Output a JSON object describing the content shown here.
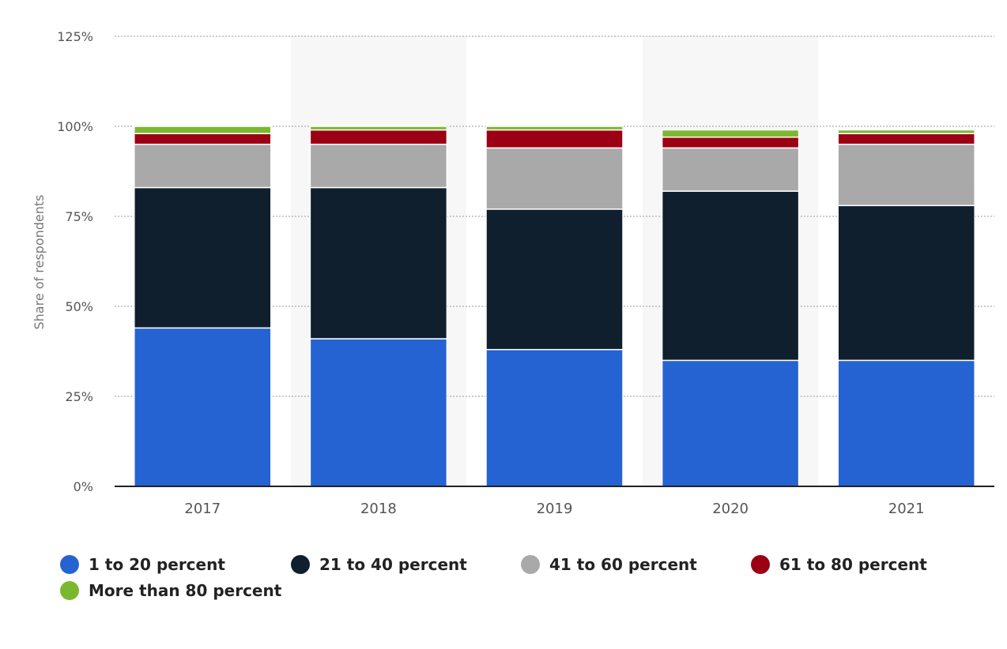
{
  "chart_data": {
    "type": "bar",
    "stacked": true,
    "categories": [
      "2017",
      "2018",
      "2019",
      "2020",
      "2021"
    ],
    "ylabel": "Share of respondents",
    "ylim": [
      0,
      125
    ],
    "yticks": [
      "0%",
      "25%",
      "50%",
      "75%",
      "100%",
      "125%"
    ],
    "grid": true,
    "legend_placement": "bottom",
    "series": [
      {
        "name": "1 to 20 percent",
        "color": "#2563d3",
        "values": [
          44,
          41,
          38,
          35,
          35
        ]
      },
      {
        "name": "21 to 40 percent",
        "color": "#0f1f2e",
        "values": [
          39,
          42,
          39,
          47,
          43
        ]
      },
      {
        "name": "41 to 60 percent",
        "color": "#a9a9a9",
        "values": [
          12,
          12,
          17,
          12,
          17
        ]
      },
      {
        "name": "61 to 80 percent",
        "color": "#9b0014",
        "values": [
          3,
          4,
          5,
          3,
          3
        ]
      },
      {
        "name": "More than 80 percent",
        "color": "#7cb82f",
        "values": [
          2,
          1,
          1,
          2,
          1
        ]
      }
    ]
  }
}
